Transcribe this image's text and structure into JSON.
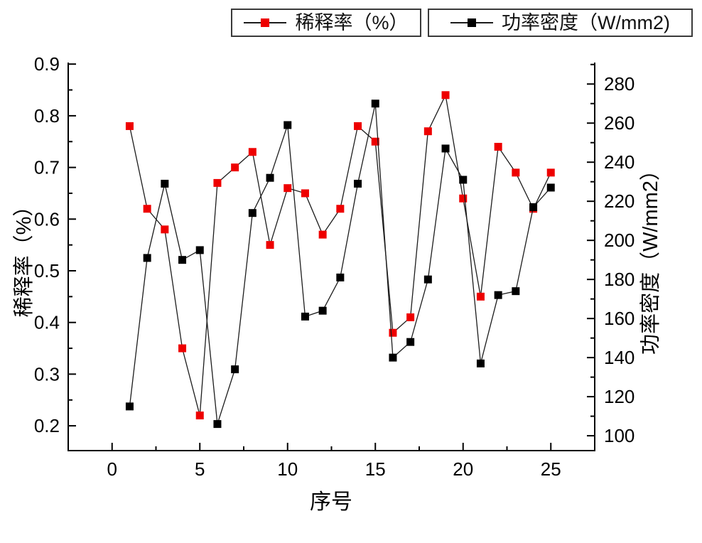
{
  "figure": {
    "background": "#ffffff",
    "axis_color": "#000000",
    "text_color": "#111111"
  },
  "legend": {
    "items": [
      {
        "label": "稀释率（%）",
        "marker_color": "#ee0000",
        "line_color": "#1c1c1c"
      },
      {
        "label": "功率密度（W/mm2)",
        "marker_color": "#000000",
        "line_color": "#1c1c1c"
      }
    ]
  },
  "axis_titles": {
    "left": "稀释率（%）",
    "right": "功率密度（W/mm2）",
    "x": "序号"
  },
  "chart_data": {
    "type": "line",
    "title": "",
    "xlabel": "序号",
    "ylabel_left": "稀释率（%）",
    "ylabel_right": "功率密度（W/mm2）",
    "grid": false,
    "legend_position": "top",
    "marker": "square",
    "marker_size": 11,
    "x": [
      1,
      2,
      3,
      4,
      5,
      6,
      7,
      8,
      9,
      10,
      11,
      12,
      13,
      14,
      15,
      16,
      17,
      18,
      19,
      20,
      21,
      22,
      23,
      24,
      25
    ],
    "series": [
      {
        "name": "稀释率（%）",
        "axis": "left",
        "marker_color": "#ee0000",
        "line_color": "#1c1c1c",
        "values": [
          0.78,
          0.62,
          0.58,
          0.35,
          0.22,
          0.67,
          0.7,
          0.73,
          0.55,
          0.66,
          0.65,
          0.57,
          0.62,
          0.78,
          0.75,
          0.38,
          0.41,
          0.77,
          0.84,
          0.64,
          0.45,
          0.74,
          0.69,
          0.62,
          0.69
        ]
      },
      {
        "name": "功率密度（W/mm2)",
        "axis": "right",
        "marker_color": "#000000",
        "line_color": "#1c1c1c",
        "values": [
          115,
          191,
          229,
          190,
          195,
          106,
          134,
          214,
          232,
          259,
          161,
          164,
          181,
          229,
          270,
          140,
          148,
          180,
          247,
          231,
          137,
          172,
          174,
          217,
          227
        ]
      }
    ],
    "x_axis": {
      "ticks": [
        0,
        5,
        10,
        15,
        20,
        25
      ],
      "minor_step": 2.5,
      "range": [
        -2.5,
        27.5
      ]
    },
    "left_axis": {
      "ticks": [
        0.2,
        0.3,
        0.4,
        0.5,
        0.6,
        0.7,
        0.8,
        0.9
      ],
      "minor_step": 0.05,
      "range": [
        0.152,
        0.903
      ]
    },
    "right_axis": {
      "ticks": [
        100,
        120,
        140,
        160,
        180,
        200,
        220,
        240,
        260,
        280
      ],
      "minor_step": 10,
      "range": [
        92.4,
        291.0
      ]
    }
  }
}
